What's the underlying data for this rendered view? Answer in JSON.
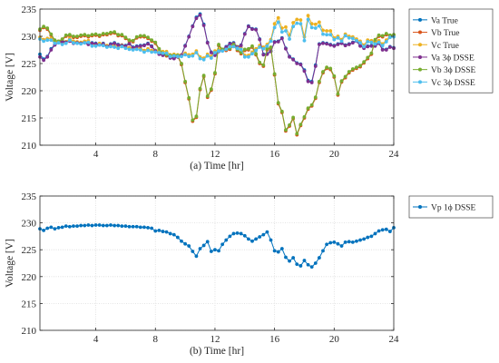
{
  "colors": {
    "va": "#0072BD",
    "vb": "#D95319",
    "vc": "#EDB120",
    "va3": "#7E2F8E",
    "vb3": "#77AC30",
    "vc3": "#4DBEEE",
    "vp1": "#0072BD"
  },
  "chart_data": [
    {
      "type": "line",
      "title": "",
      "xlabel": "(a) Time [hr]",
      "ylabel": "Voltage [V]",
      "xlim": [
        0.25,
        24
      ],
      "ylim": [
        210,
        235
      ],
      "xticks": [
        4,
        8,
        12,
        16,
        20,
        24
      ],
      "yticks": [
        210,
        215,
        220,
        225,
        230,
        235
      ],
      "x_tick_labels": [
        "4",
        "8",
        "12",
        "16",
        "20",
        "24"
      ],
      "y_tick_labels": [
        "210",
        "215",
        "220",
        "225",
        "230",
        "235"
      ],
      "grid": true,
      "legend_position": "outside-right",
      "x": [
        0.25,
        0.5,
        0.75,
        1,
        1.25,
        1.5,
        1.75,
        2,
        2.25,
        2.5,
        2.75,
        3,
        3.25,
        3.5,
        3.75,
        4,
        4.25,
        4.5,
        4.75,
        5,
        5.25,
        5.5,
        5.75,
        6,
        6.25,
        6.5,
        6.75,
        7,
        7.25,
        7.5,
        7.75,
        8,
        8.25,
        8.5,
        8.75,
        9,
        9.25,
        9.5,
        9.75,
        10,
        10.25,
        10.5,
        10.75,
        11,
        11.25,
        11.5,
        11.75,
        12,
        12.25,
        12.5,
        12.75,
        13,
        13.25,
        13.5,
        13.75,
        14,
        14.25,
        14.5,
        14.75,
        15,
        15.25,
        15.5,
        15.75,
        16,
        16.25,
        16.5,
        16.75,
        17,
        17.25,
        17.5,
        17.75,
        18,
        18.25,
        18.5,
        18.75,
        19,
        19.25,
        19.5,
        19.75,
        20,
        20.25,
        20.5,
        20.75,
        21,
        21.25,
        21.5,
        21.75,
        22,
        22.25,
        22.5,
        22.75,
        23,
        23.25,
        23.5,
        23.75,
        24
      ],
      "series": [
        {
          "name": "Va True",
          "color_key": "va",
          "values": [
            226.7,
            225.8,
            226.3,
            227.7,
            228.5,
            229.0,
            229.2,
            229.0,
            229.2,
            228.8,
            228.9,
            228.8,
            228.9,
            228.6,
            228.8,
            228.7,
            228.5,
            228.7,
            228.2,
            228.6,
            228.8,
            228.5,
            228.4,
            228.3,
            228.7,
            228.0,
            228.2,
            228.3,
            228.4,
            228.7,
            228.2,
            227.4,
            226.8,
            226.6,
            226.7,
            226.1,
            226.0,
            226.3,
            226.6,
            228.3,
            230.0,
            231.9,
            233.5,
            234.1,
            232.2,
            228.9,
            227.1,
            226.6,
            227.3,
            227.6,
            228.1,
            228.7,
            228.8,
            228.1,
            228.4,
            230.5,
            231.9,
            231.4,
            231.3,
            229.5,
            226.7,
            226.8,
            227.3,
            229.0,
            229.1,
            229.7,
            227.8,
            226.3,
            225.8,
            225.1,
            224.9,
            223.8,
            221.9,
            221.7,
            224.7,
            228.6,
            228.8,
            228.7,
            228.5,
            228.3,
            228.6,
            228.8,
            228.4,
            228.6,
            228.9,
            229.2,
            228.3,
            227.9,
            228.2,
            228.3,
            228.3,
            228.8,
            227.6,
            227.6,
            228.1,
            227.9
          ]
        },
        {
          "name": "Vb True",
          "color_key": "vb",
          "values": [
            231.1,
            231.6,
            231.3,
            230.2,
            229.1,
            228.9,
            229.3,
            230.0,
            230.1,
            229.8,
            229.8,
            230.0,
            230.1,
            229.9,
            230.1,
            230.2,
            230.0,
            230.3,
            230.3,
            230.5,
            230.6,
            230.1,
            230.1,
            229.6,
            229.1,
            229.0,
            229.7,
            229.9,
            229.9,
            229.6,
            229.1,
            228.7,
            227.5,
            226.7,
            226.4,
            226.3,
            226.3,
            226.3,
            224.8,
            221.5,
            218.5,
            214.4,
            215.1,
            220.2,
            222.6,
            218.8,
            220.1,
            223.1,
            228.3,
            227.4,
            227.4,
            227.6,
            228.3,
            227.4,
            226.8,
            227.4,
            227.5,
            228.0,
            226.6,
            225.0,
            224.5,
            227.5,
            227.8,
            222.9,
            217.6,
            216.0,
            212.6,
            213.5,
            214.9,
            211.9,
            213.6,
            215.0,
            216.6,
            217.2,
            218.6,
            221.5,
            223.3,
            224.1,
            223.9,
            222.5,
            219.2,
            221.6,
            222.4,
            223.3,
            223.8,
            224.1,
            224.4,
            225.1,
            225.9,
            226.7,
            229.2,
            230.0,
            229.9,
            230.3,
            230.0,
            230.1
          ]
        },
        {
          "name": "Vc True",
          "color_key": "vc",
          "values": [
            229.8,
            229.4,
            229.6,
            229.6,
            229.0,
            229.1,
            228.8,
            229.0,
            229.6,
            229.1,
            229.0,
            228.9,
            229.1,
            229.2,
            228.5,
            228.5,
            228.7,
            228.6,
            228.3,
            228.4,
            228.3,
            228.1,
            228.4,
            228.1,
            227.9,
            227.8,
            227.9,
            227.8,
            227.4,
            227.7,
            227.4,
            227.4,
            227.3,
            227.2,
            227.2,
            226.6,
            226.7,
            226.6,
            226.6,
            226.9,
            226.6,
            226.7,
            227.3,
            226.2,
            226.0,
            226.7,
            226.3,
            227.3,
            227.6,
            227.6,
            227.9,
            228.4,
            228.4,
            228.1,
            227.9,
            226.5,
            226.5,
            227.1,
            227.7,
            228.3,
            228.0,
            228.5,
            229.4,
            232.3,
            233.4,
            231.5,
            231.7,
            230.2,
            232.5,
            233.1,
            233.0,
            229.9,
            233.8,
            232.3,
            232.2,
            232.6,
            231.1,
            231.0,
            231.0,
            229.7,
            230.0,
            229.4,
            230.4,
            230.0,
            229.9,
            229.5,
            229.1,
            228.4,
            229.3,
            229.2,
            228.9,
            229.2,
            228.6,
            229.3,
            230.1,
            230.2
          ]
        },
        {
          "name": "Va 3ϕ DSSE",
          "color_key": "va3",
          "values": [
            226.2,
            225.6,
            226.2,
            227.5,
            228.4,
            228.9,
            229.0,
            228.9,
            229.1,
            228.7,
            228.8,
            228.7,
            228.8,
            228.5,
            228.7,
            228.6,
            228.4,
            228.6,
            228.1,
            228.5,
            228.7,
            228.4,
            228.3,
            228.2,
            228.6,
            227.9,
            228.1,
            228.2,
            228.3,
            228.6,
            228.1,
            227.3,
            226.7,
            226.5,
            226.6,
            226.0,
            225.9,
            226.2,
            226.5,
            228.2,
            229.9,
            231.8,
            233.3,
            233.9,
            232.0,
            228.8,
            227.0,
            226.5,
            227.2,
            227.5,
            228.0,
            228.6,
            228.7,
            228.0,
            228.3,
            230.4,
            231.8,
            231.3,
            231.2,
            229.4,
            226.6,
            226.7,
            227.2,
            228.9,
            229.0,
            229.6,
            227.7,
            226.2,
            225.7,
            225.0,
            224.8,
            223.6,
            221.7,
            221.5,
            224.5,
            228.5,
            228.7,
            228.6,
            228.4,
            228.2,
            228.5,
            228.7,
            228.3,
            228.5,
            228.8,
            229.1,
            228.2,
            227.8,
            228.1,
            228.2,
            228.2,
            228.7,
            227.5,
            227.5,
            228.0,
            227.8
          ]
        },
        {
          "name": "Vb 3ϕ DSSE",
          "color_key": "vb3",
          "values": [
            231.3,
            231.8,
            231.5,
            230.4,
            229.3,
            229.1,
            229.5,
            230.2,
            230.3,
            230.0,
            230.0,
            230.2,
            230.3,
            230.1,
            230.3,
            230.4,
            230.2,
            230.5,
            230.5,
            230.7,
            230.8,
            230.3,
            230.3,
            229.8,
            229.3,
            229.2,
            229.9,
            230.1,
            230.1,
            229.8,
            229.3,
            228.9,
            227.7,
            226.9,
            226.6,
            226.5,
            226.5,
            226.5,
            225.0,
            221.7,
            218.7,
            214.6,
            215.3,
            220.4,
            222.8,
            219.0,
            220.3,
            223.3,
            228.5,
            227.6,
            227.6,
            227.8,
            228.5,
            227.6,
            227.0,
            227.6,
            227.7,
            228.2,
            226.8,
            225.2,
            224.7,
            227.7,
            228.0,
            223.1,
            217.8,
            216.2,
            212.8,
            213.7,
            215.1,
            212.1,
            213.8,
            215.2,
            216.8,
            217.4,
            218.8,
            221.7,
            223.5,
            224.3,
            224.1,
            222.7,
            219.4,
            221.8,
            222.6,
            223.5,
            224.0,
            224.3,
            224.6,
            225.3,
            226.1,
            226.9,
            229.4,
            230.2,
            230.1,
            230.5,
            230.2,
            230.3
          ]
        },
        {
          "name": "Vc 3ϕ DSSE",
          "color_key": "vc3",
          "values": [
            229.5,
            229.1,
            229.3,
            229.3,
            228.7,
            228.8,
            228.5,
            228.7,
            229.3,
            228.8,
            228.7,
            228.6,
            228.8,
            228.9,
            228.2,
            228.2,
            228.4,
            228.3,
            228.0,
            228.1,
            228.0,
            227.8,
            228.1,
            227.8,
            227.6,
            227.5,
            227.6,
            227.5,
            227.1,
            227.4,
            227.1,
            227.1,
            227.0,
            226.9,
            226.9,
            226.3,
            226.4,
            226.3,
            226.3,
            226.6,
            226.3,
            226.4,
            227.0,
            225.9,
            225.7,
            226.4,
            226.0,
            227.0,
            227.3,
            227.3,
            227.6,
            228.1,
            228.1,
            227.8,
            227.6,
            226.2,
            226.2,
            226.8,
            227.4,
            228.0,
            227.7,
            228.2,
            229.1,
            231.6,
            232.6,
            230.8,
            231.0,
            229.5,
            231.8,
            232.4,
            232.3,
            229.2,
            233.1,
            231.6,
            231.5,
            231.9,
            230.4,
            230.3,
            230.3,
            229.4,
            229.7,
            229.1,
            230.1,
            229.7,
            229.6,
            229.2,
            228.8,
            228.1,
            229.0,
            228.9,
            228.6,
            228.9,
            228.3,
            229.0,
            229.8,
            229.9
          ]
        }
      ]
    },
    {
      "type": "line",
      "title": "",
      "xlabel": "(b) Time [hr]",
      "ylabel": "Voltage [V]",
      "xlim": [
        0.25,
        24
      ],
      "ylim": [
        210,
        235
      ],
      "xticks": [
        4,
        8,
        12,
        16,
        20,
        24
      ],
      "yticks": [
        210,
        215,
        220,
        225,
        230,
        235
      ],
      "x_tick_labels": [
        "4",
        "8",
        "12",
        "16",
        "20",
        "24"
      ],
      "y_tick_labels": [
        "210",
        "215",
        "220",
        "225",
        "230",
        "235"
      ],
      "grid": true,
      "legend_position": "outside-right",
      "x": [
        0.25,
        0.5,
        0.75,
        1,
        1.25,
        1.5,
        1.75,
        2,
        2.25,
        2.5,
        2.75,
        3,
        3.25,
        3.5,
        3.75,
        4,
        4.25,
        4.5,
        4.75,
        5,
        5.25,
        5.5,
        5.75,
        6,
        6.25,
        6.5,
        6.75,
        7,
        7.25,
        7.5,
        7.75,
        8,
        8.25,
        8.5,
        8.75,
        9,
        9.25,
        9.5,
        9.75,
        10,
        10.25,
        10.5,
        10.75,
        11,
        11.25,
        11.5,
        11.75,
        12,
        12.25,
        12.5,
        12.75,
        13,
        13.25,
        13.5,
        13.75,
        14,
        14.25,
        14.5,
        14.75,
        15,
        15.25,
        15.5,
        15.75,
        16,
        16.25,
        16.5,
        16.75,
        17,
        17.25,
        17.5,
        17.75,
        18,
        18.25,
        18.5,
        18.75,
        19,
        19.25,
        19.5,
        19.75,
        20,
        20.25,
        20.5,
        20.75,
        21,
        21.25,
        21.5,
        21.75,
        22,
        22.25,
        22.5,
        22.75,
        23,
        23.25,
        23.5,
        23.75,
        24
      ],
      "series": [
        {
          "name": "Vp 1ϕ DSSE",
          "color_key": "vp1",
          "values": [
            228.9,
            228.6,
            229.0,
            229.2,
            228.9,
            229.1,
            229.2,
            229.4,
            229.3,
            229.4,
            229.4,
            229.5,
            229.5,
            229.6,
            229.5,
            229.6,
            229.6,
            229.5,
            229.5,
            229.6,
            229.5,
            229.5,
            229.4,
            229.4,
            229.3,
            229.3,
            229.3,
            229.2,
            229.2,
            229.1,
            229.0,
            228.5,
            228.6,
            228.4,
            228.3,
            228.0,
            227.8,
            227.3,
            226.6,
            226.1,
            225.7,
            224.7,
            223.8,
            225.2,
            225.8,
            226.5,
            224.7,
            225.0,
            224.8,
            226.0,
            226.8,
            227.5,
            228.0,
            228.1,
            228.0,
            227.6,
            227.0,
            226.6,
            227.0,
            227.4,
            227.8,
            228.3,
            226.8,
            224.8,
            224.6,
            225.2,
            223.6,
            222.9,
            223.5,
            222.3,
            222.0,
            223.0,
            222.2,
            221.8,
            222.5,
            223.5,
            224.8,
            226.0,
            226.3,
            226.4,
            226.1,
            225.7,
            226.4,
            226.5,
            226.4,
            226.6,
            226.8,
            227.0,
            227.3,
            227.5,
            228.0,
            228.5,
            228.7,
            228.8,
            228.4,
            229.1
          ]
        }
      ]
    }
  ]
}
